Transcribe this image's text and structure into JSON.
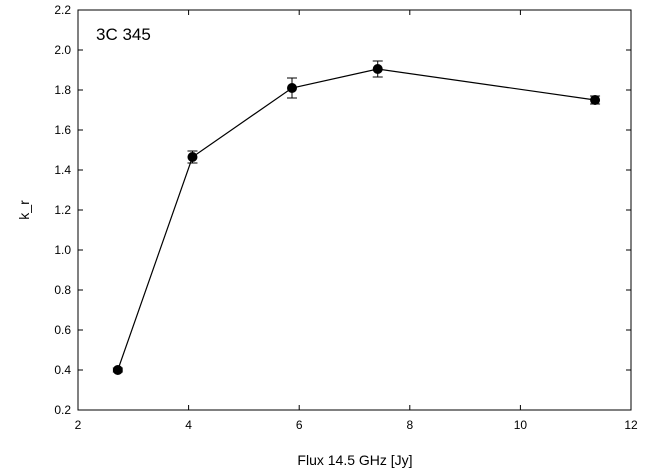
{
  "chart_data": {
    "type": "line",
    "title": "3C 345",
    "xlabel": "Flux 14.5 GHz [Jy]",
    "ylabel": "k_r",
    "xlim": [
      2,
      12
    ],
    "ylim": [
      0.2,
      2.2
    ],
    "xticks": [
      2,
      4,
      6,
      8,
      10,
      12
    ],
    "xtick_labels": [
      "2",
      "4",
      "6",
      "8",
      "10",
      "12"
    ],
    "yticks": [
      0.2,
      0.4,
      0.6,
      0.8,
      1.0,
      1.2,
      1.4,
      1.6,
      1.8,
      2.0,
      2.2
    ],
    "ytick_labels": [
      "0.2",
      "0.4",
      "0.6",
      "0.8",
      "1.0",
      "1.2",
      "1.4",
      "1.6",
      "1.8",
      "2.0",
      "2.2"
    ],
    "grid": false,
    "series": [
      {
        "x": [
          2.72,
          4.07,
          5.87,
          7.42,
          11.35
        ],
        "y": [
          0.4,
          1.465,
          1.81,
          1.905,
          1.75
        ],
        "yerr": [
          0.01,
          0.03,
          0.05,
          0.04,
          0.02
        ],
        "marker": "circle",
        "color": "#000000"
      }
    ]
  }
}
